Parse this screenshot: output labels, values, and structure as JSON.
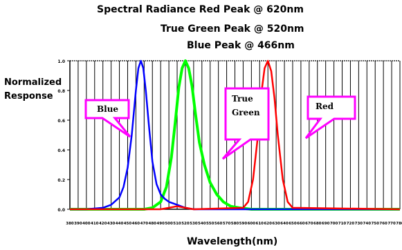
{
  "chart_data": {
    "type": "line",
    "title_lines": [
      "Spectral Radiance Red Peak @ 620nm",
      "True Green Peak @ 520nm",
      "Blue Peak @ 466nm"
    ],
    "xlabel": "Wavelength(nm)",
    "ylabel_lines": [
      "Normalized",
      "Response"
    ],
    "xlim": [
      380,
      780
    ],
    "ylim": [
      0,
      1.0
    ],
    "x_ticks": [
      380,
      390,
      400,
      410,
      420,
      430,
      440,
      450,
      460,
      470,
      480,
      490,
      500,
      510,
      520,
      530,
      540,
      550,
      560,
      570,
      580,
      590,
      600,
      610,
      620,
      630,
      640,
      650,
      660,
      670,
      680,
      690,
      700,
      710,
      720,
      730,
      740,
      750,
      760,
      770,
      780
    ],
    "x_tick_labels": [
      "380",
      "390",
      "400",
      "410",
      "420",
      "430",
      "440",
      "450",
      "460",
      "470",
      "480",
      "490",
      "500",
      "510",
      "520",
      "530",
      "540",
      "550",
      "560",
      "570",
      "580",
      "590",
      "600",
      "610",
      "620",
      "630",
      "640",
      "650",
      "660",
      "670",
      "680",
      "690",
      "700",
      "710",
      "720",
      "730",
      "740",
      "750",
      "760",
      "770",
      "780"
    ],
    "y_ticks": [
      0,
      0.2,
      0.4,
      0.6,
      0.8,
      1.0
    ],
    "y_tick_labels": [
      "0.0",
      "0.2",
      "0.4",
      "0.6",
      "0.8",
      "1.0"
    ],
    "grid": "vertical",
    "series": [
      {
        "name": "Blue",
        "color": "#0000ff",
        "x": [
          380,
          400,
          420,
          430,
          440,
          445,
          450,
          455,
          460,
          463,
          466,
          469,
          472,
          476,
          480,
          485,
          490,
          495,
          500,
          505,
          510,
          520,
          530,
          780
        ],
        "y": [
          0,
          0.0,
          0.01,
          0.03,
          0.08,
          0.15,
          0.28,
          0.5,
          0.8,
          0.95,
          1.0,
          0.95,
          0.8,
          0.55,
          0.32,
          0.17,
          0.1,
          0.07,
          0.05,
          0.04,
          0.03,
          0.01,
          0.0,
          0
        ]
      },
      {
        "name": "True Green",
        "color": "#00ff00",
        "x": [
          380,
          470,
          480,
          490,
          497,
          503,
          508,
          512,
          516,
          520,
          524,
          528,
          532,
          537,
          543,
          550,
          558,
          566,
          575,
          585,
          600,
          780
        ],
        "y": [
          0,
          0,
          0.01,
          0.05,
          0.15,
          0.35,
          0.6,
          0.82,
          0.95,
          1.0,
          0.95,
          0.83,
          0.65,
          0.45,
          0.3,
          0.18,
          0.1,
          0.05,
          0.02,
          0.01,
          0,
          0
        ]
      },
      {
        "name": "Red",
        "color": "#ff0000",
        "x": [
          380,
          490,
          500,
          510,
          520,
          530,
          590,
          596,
          602,
          608,
          612,
          616,
          620,
          624,
          628,
          632,
          638,
          644,
          650,
          780
        ],
        "y": [
          0,
          0,
          0.01,
          0.02,
          0.01,
          0,
          0.01,
          0.05,
          0.2,
          0.5,
          0.78,
          0.95,
          1.0,
          0.93,
          0.75,
          0.5,
          0.2,
          0.05,
          0.01,
          0
        ]
      }
    ],
    "annotations": [
      {
        "name": "blue-callout",
        "lines": [
          "Blue"
        ]
      },
      {
        "name": "green-callout",
        "lines": [
          "True",
          "Green"
        ]
      },
      {
        "name": "red-callout",
        "lines": [
          "Red"
        ]
      }
    ]
  }
}
